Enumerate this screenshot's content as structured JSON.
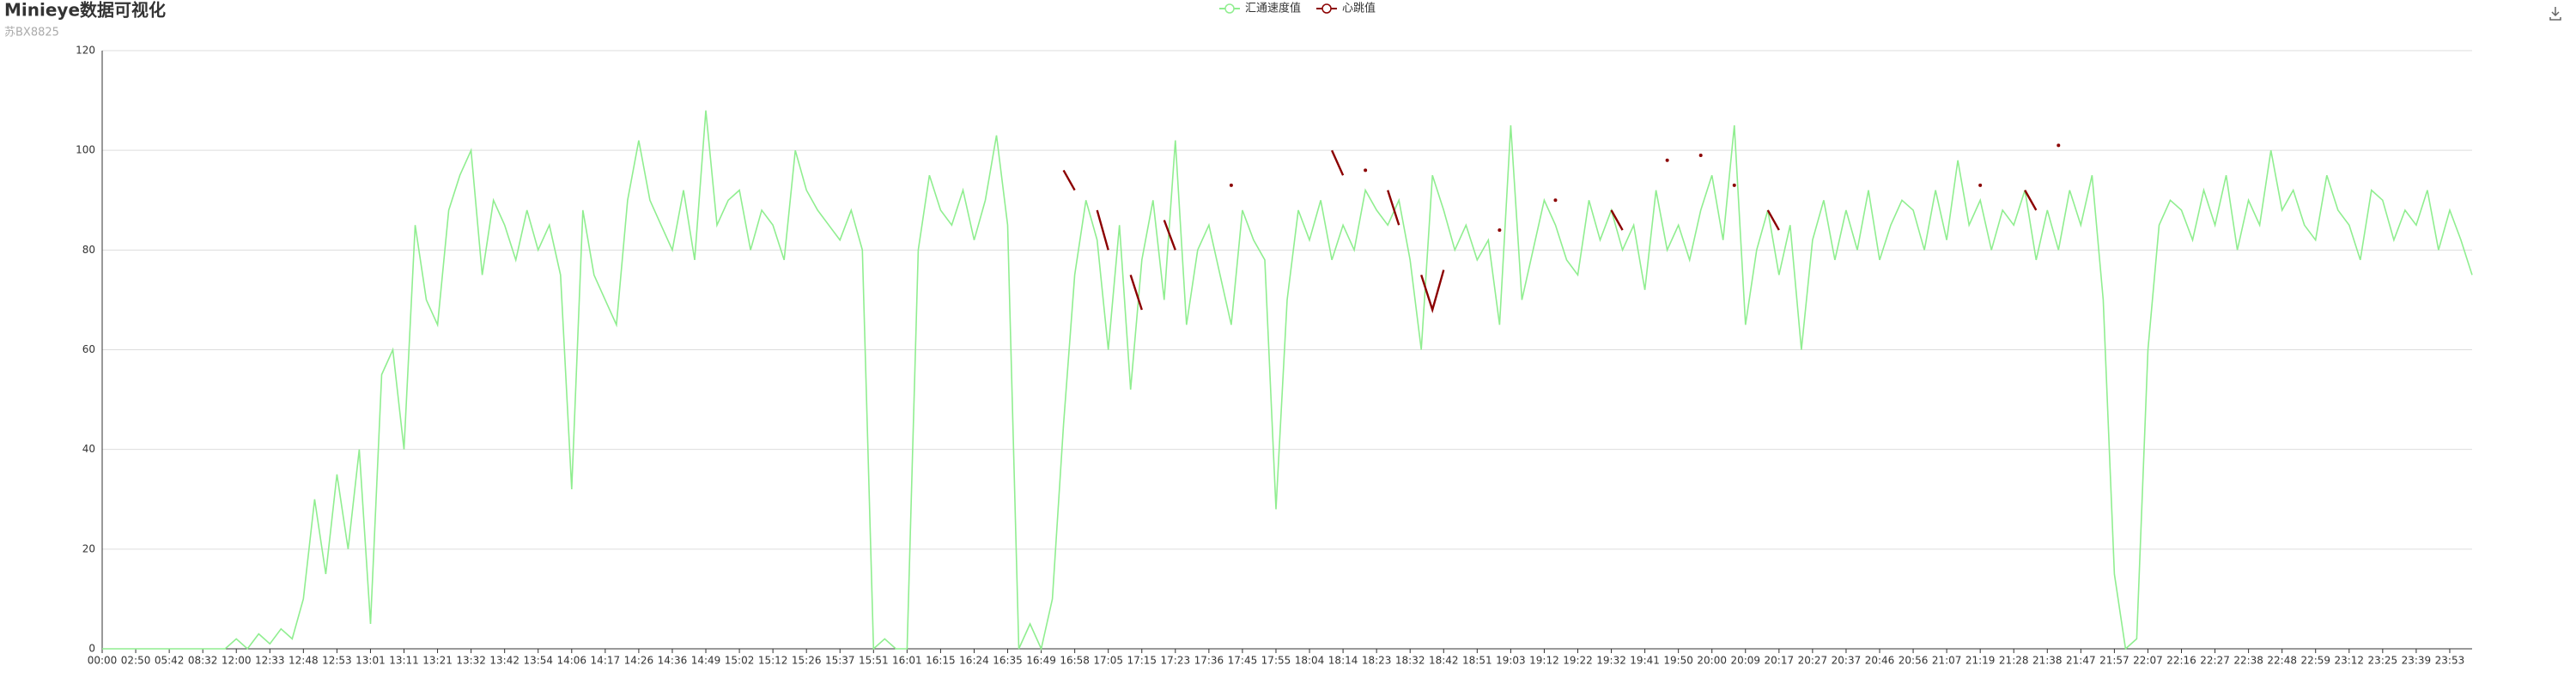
{
  "chart_data": {
    "type": "line",
    "title": "Minieye数据可视化",
    "subtitle": "苏BX8825",
    "categories": [
      "00:00",
      null,
      null,
      "02:50",
      null,
      null,
      "05:42",
      null,
      null,
      "08:32",
      null,
      null,
      "12:00",
      null,
      null,
      "12:33",
      null,
      null,
      "12:48",
      null,
      null,
      "12:53",
      null,
      null,
      "13:01",
      null,
      null,
      "13:11",
      null,
      null,
      "13:21",
      null,
      null,
      "13:32",
      null,
      null,
      "13:42",
      null,
      null,
      "13:54",
      null,
      null,
      "14:06",
      null,
      null,
      "14:17",
      null,
      null,
      "14:26",
      null,
      null,
      "14:36",
      null,
      null,
      "14:49",
      null,
      null,
      "15:02",
      null,
      null,
      "15:12",
      null,
      null,
      "15:26",
      null,
      null,
      "15:37",
      null,
      null,
      "15:51",
      null,
      null,
      "16:01",
      null,
      null,
      "16:15",
      null,
      null,
      "16:24",
      null,
      null,
      "16:35",
      null,
      null,
      "16:49",
      null,
      null,
      "16:58",
      null,
      null,
      "17:05",
      null,
      null,
      "17:15",
      null,
      null,
      "17:23",
      null,
      null,
      "17:36",
      null,
      null,
      "17:45",
      null,
      null,
      "17:55",
      null,
      null,
      "18:04",
      null,
      null,
      "18:14",
      null,
      null,
      "18:23",
      null,
      null,
      "18:32",
      null,
      null,
      "18:42",
      null,
      null,
      "18:51",
      null,
      null,
      "19:03",
      null,
      null,
      "19:12",
      null,
      null,
      "19:22",
      null,
      null,
      "19:32",
      null,
      null,
      "19:41",
      null,
      null,
      "19:50",
      null,
      null,
      "20:00",
      null,
      null,
      "20:09",
      null,
      null,
      "20:17",
      null,
      null,
      "20:27",
      null,
      null,
      "20:37",
      null,
      null,
      "20:46",
      null,
      null,
      "20:56",
      null,
      null,
      "21:07",
      null,
      null,
      "21:19",
      null,
      null,
      "21:28",
      null,
      null,
      "21:38",
      null,
      null,
      "21:47",
      null,
      null,
      "21:57",
      null,
      null,
      "22:07",
      null,
      null,
      "22:16",
      null,
      null,
      "22:27",
      null,
      null,
      "22:38",
      null,
      null,
      "22:48",
      null,
      null,
      "22:59",
      null,
      null,
      "23:12",
      null,
      null,
      "23:25",
      null,
      null,
      "23:39",
      null,
      null,
      "23:53",
      null,
      null
    ],
    "series": [
      {
        "name": "汇通速度值",
        "color": "#90ee90",
        "values": [
          0,
          0,
          0,
          0,
          0,
          0,
          0,
          0,
          0,
          0,
          0,
          0,
          2,
          0,
          3,
          1,
          4,
          2,
          10,
          30,
          15,
          35,
          20,
          40,
          5,
          55,
          60,
          40,
          85,
          70,
          65,
          88,
          95,
          100,
          75,
          90,
          85,
          78,
          88,
          80,
          85,
          75,
          32,
          88,
          75,
          70,
          65,
          90,
          102,
          90,
          85,
          80,
          92,
          78,
          108,
          85,
          90,
          92,
          80,
          88,
          85,
          78,
          100,
          92,
          88,
          85,
          82,
          88,
          80,
          0,
          2,
          0,
          0,
          80,
          95,
          88,
          85,
          92,
          82,
          90,
          103,
          85,
          0,
          5,
          0,
          10,
          45,
          75,
          90,
          82,
          60,
          85,
          52,
          78,
          90,
          70,
          102,
          65,
          80,
          85,
          75,
          65,
          88,
          82,
          78,
          28,
          70,
          88,
          82,
          90,
          78,
          85,
          80,
          92,
          88,
          85,
          90,
          78,
          60,
          95,
          88,
          80,
          85,
          78,
          82,
          65,
          105,
          70,
          80,
          90,
          85,
          78,
          75,
          90,
          82,
          88,
          80,
          85,
          72,
          92,
          80,
          85,
          78,
          88,
          95,
          82,
          105,
          65,
          80,
          88,
          75,
          85,
          60,
          82,
          90,
          78,
          88,
          80,
          92,
          78,
          85,
          90,
          88,
          80,
          92,
          82,
          98,
          85,
          90,
          80,
          88,
          85,
          92,
          78,
          88,
          80,
          92,
          85,
          95,
          70,
          15,
          0,
          2,
          60,
          85,
          90,
          88,
          82,
          92,
          85,
          95,
          80,
          90,
          85,
          100,
          88,
          92,
          85,
          82,
          95,
          88,
          85,
          78,
          92,
          90,
          82,
          88,
          85,
          92,
          80,
          88,
          82,
          75
        ]
      },
      {
        "name": "心跳值",
        "color": "#8b0000",
        "values": [
          null,
          null,
          null,
          null,
          null,
          null,
          null,
          null,
          null,
          null,
          null,
          null,
          null,
          null,
          null,
          null,
          null,
          null,
          null,
          null,
          null,
          null,
          null,
          null,
          null,
          null,
          null,
          null,
          null,
          null,
          null,
          null,
          null,
          null,
          null,
          null,
          null,
          null,
          null,
          null,
          null,
          null,
          null,
          null,
          null,
          null,
          null,
          null,
          null,
          null,
          null,
          null,
          null,
          null,
          null,
          null,
          null,
          null,
          null,
          null,
          null,
          null,
          null,
          null,
          null,
          null,
          null,
          null,
          null,
          null,
          null,
          null,
          null,
          null,
          null,
          null,
          null,
          null,
          null,
          null,
          null,
          null,
          null,
          null,
          null,
          null,
          96,
          92,
          null,
          88,
          80,
          null,
          75,
          68,
          null,
          86,
          80,
          null,
          null,
          null,
          null,
          93,
          null,
          null,
          null,
          null,
          null,
          null,
          null,
          null,
          100,
          95,
          null,
          96,
          null,
          92,
          85,
          null,
          75,
          68,
          76,
          null,
          null,
          null,
          null,
          84,
          null,
          null,
          null,
          null,
          90,
          null,
          null,
          null,
          null,
          88,
          84,
          null,
          null,
          null,
          98,
          null,
          null,
          99,
          null,
          null,
          93,
          null,
          null,
          88,
          84,
          null,
          null,
          null,
          null,
          null,
          null,
          null,
          null,
          null,
          null,
          null,
          null,
          null,
          null,
          null,
          null,
          null,
          93,
          null,
          null,
          null,
          92,
          88,
          null,
          101,
          null,
          null,
          null,
          null,
          null,
          null,
          null,
          null,
          null,
          null,
          null,
          null,
          null,
          null,
          null,
          null,
          null,
          null,
          null,
          null,
          null,
          null,
          null,
          null,
          null,
          null,
          null,
          null,
          null,
          null,
          null,
          null,
          null,
          null,
          null,
          null,
          null
        ]
      }
    ],
    "ylim": [
      0,
      120
    ],
    "yticks": [
      0,
      20,
      40,
      60,
      80,
      100,
      120
    ],
    "grid": true,
    "legend": "top"
  }
}
